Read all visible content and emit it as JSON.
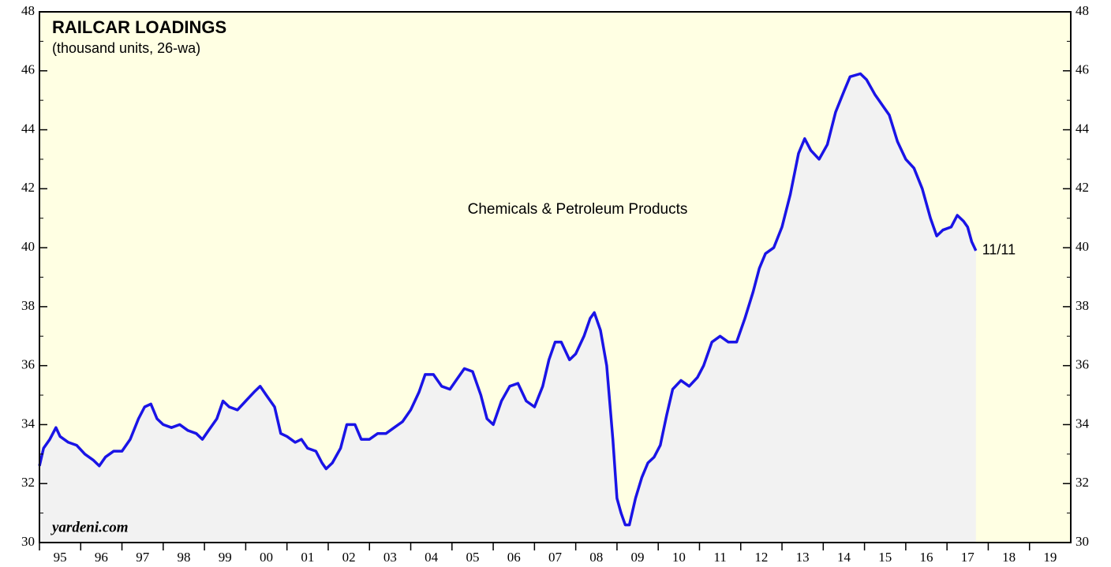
{
  "chart_data": {
    "type": "area",
    "title": "RAILCAR LOADINGS",
    "subtitle": "(thousand units, 26-wa)",
    "annotation": "Chemicals & Petroleum Products",
    "end_label": "11/11",
    "source": "yardeni.com",
    "xlim": [
      1995,
      2020
    ],
    "xticks": [
      {
        "value": 1995,
        "label": "95"
      },
      {
        "value": 1996,
        "label": "96"
      },
      {
        "value": 1997,
        "label": "97"
      },
      {
        "value": 1998,
        "label": "98"
      },
      {
        "value": 1999,
        "label": "99"
      },
      {
        "value": 2000,
        "label": "00"
      },
      {
        "value": 2001,
        "label": "01"
      },
      {
        "value": 2002,
        "label": "02"
      },
      {
        "value": 2003,
        "label": "03"
      },
      {
        "value": 2004,
        "label": "04"
      },
      {
        "value": 2005,
        "label": "05"
      },
      {
        "value": 2006,
        "label": "06"
      },
      {
        "value": 2007,
        "label": "07"
      },
      {
        "value": 2008,
        "label": "08"
      },
      {
        "value": 2009,
        "label": "09"
      },
      {
        "value": 2010,
        "label": "10"
      },
      {
        "value": 2011,
        "label": "11"
      },
      {
        "value": 2012,
        "label": "12"
      },
      {
        "value": 2013,
        "label": "13"
      },
      {
        "value": 2014,
        "label": "14"
      },
      {
        "value": 2015,
        "label": "15"
      },
      {
        "value": 2016,
        "label": "16"
      },
      {
        "value": 2017,
        "label": "17"
      },
      {
        "value": 2018,
        "label": "18"
      },
      {
        "value": 2019,
        "label": "19"
      }
    ],
    "ylim": [
      30,
      48
    ],
    "yticks": [
      30,
      32,
      34,
      36,
      38,
      40,
      42,
      44,
      46,
      48
    ],
    "background": "#ffffe3",
    "fill": "#f2f2f2",
    "series": [
      {
        "name": "Chemicals & Petroleum Products",
        "color": "#1a14e6",
        "x": [
          1995.0,
          1995.1,
          1995.25,
          1995.4,
          1995.5,
          1995.7,
          1995.9,
          1996.1,
          1996.3,
          1996.45,
          1996.6,
          1996.8,
          1997.0,
          1997.2,
          1997.4,
          1997.55,
          1997.7,
          1997.85,
          1998.0,
          1998.2,
          1998.4,
          1998.6,
          1998.8,
          1998.95,
          1999.1,
          1999.3,
          1999.45,
          1999.6,
          1999.8,
          2000.0,
          2000.2,
          2000.35,
          2000.5,
          2000.7,
          2000.85,
          2001.0,
          2001.2,
          2001.35,
          2001.5,
          2001.7,
          2001.85,
          2001.95,
          2002.1,
          2002.3,
          2002.45,
          2002.65,
          2002.8,
          2003.0,
          2003.2,
          2003.4,
          2003.6,
          2003.8,
          2004.0,
          2004.2,
          2004.35,
          2004.55,
          2004.75,
          2004.95,
          2005.1,
          2005.3,
          2005.5,
          2005.7,
          2005.85,
          2006.0,
          2006.2,
          2006.4,
          2006.6,
          2006.8,
          2007.0,
          2007.2,
          2007.35,
          2007.5,
          2007.65,
          2007.85,
          2008.0,
          2008.2,
          2008.35,
          2008.45,
          2008.6,
          2008.75,
          2008.9,
          2009.0,
          2009.1,
          2009.2,
          2009.3,
          2009.45,
          2009.6,
          2009.75,
          2009.9,
          2010.05,
          2010.2,
          2010.35,
          2010.55,
          2010.75,
          2010.95,
          2011.1,
          2011.3,
          2011.5,
          2011.7,
          2011.9,
          2012.1,
          2012.3,
          2012.45,
          2012.6,
          2012.8,
          2013.0,
          2013.2,
          2013.4,
          2013.55,
          2013.7,
          2013.9,
          2014.1,
          2014.3,
          2014.5,
          2014.65,
          2014.9,
          2015.05,
          2015.25,
          2015.45,
          2015.6,
          2015.8,
          2016.0,
          2016.2,
          2016.4,
          2016.6,
          2016.75,
          2016.9,
          2017.1,
          2017.25,
          2017.4,
          2017.5,
          2017.6,
          2017.7
        ],
        "values": [
          32.6,
          33.2,
          33.5,
          33.9,
          33.6,
          33.4,
          33.3,
          33.0,
          32.8,
          32.6,
          32.9,
          33.1,
          33.1,
          33.5,
          34.2,
          34.6,
          34.7,
          34.2,
          34.0,
          33.9,
          34.0,
          33.8,
          33.7,
          33.5,
          33.8,
          34.2,
          34.8,
          34.6,
          34.5,
          34.8,
          35.1,
          35.3,
          35.0,
          34.6,
          33.7,
          33.6,
          33.4,
          33.5,
          33.2,
          33.1,
          32.7,
          32.5,
          32.7,
          33.2,
          34.0,
          34.0,
          33.5,
          33.5,
          33.7,
          33.7,
          33.9,
          34.1,
          34.5,
          35.1,
          35.7,
          35.7,
          35.3,
          35.2,
          35.5,
          35.9,
          35.8,
          35.0,
          34.2,
          34.0,
          34.8,
          35.3,
          35.4,
          34.8,
          34.6,
          35.3,
          36.2,
          36.8,
          36.8,
          36.2,
          36.4,
          37.0,
          37.6,
          37.8,
          37.2,
          36.0,
          33.5,
          31.5,
          31.0,
          30.6,
          30.6,
          31.5,
          32.2,
          32.7,
          32.9,
          33.3,
          34.3,
          35.2,
          35.5,
          35.3,
          35.6,
          36.0,
          36.8,
          37.0,
          36.8,
          36.8,
          37.6,
          38.5,
          39.3,
          39.8,
          40.0,
          40.7,
          41.8,
          43.2,
          43.7,
          43.3,
          43.0,
          43.5,
          44.6,
          45.3,
          45.8,
          45.9,
          45.7,
          45.2,
          44.8,
          44.5,
          43.6,
          43.0,
          42.7,
          42.0,
          41.0,
          40.4,
          40.6,
          40.7,
          41.1,
          40.9,
          40.7,
          40.2,
          39.9
        ]
      }
    ]
  }
}
